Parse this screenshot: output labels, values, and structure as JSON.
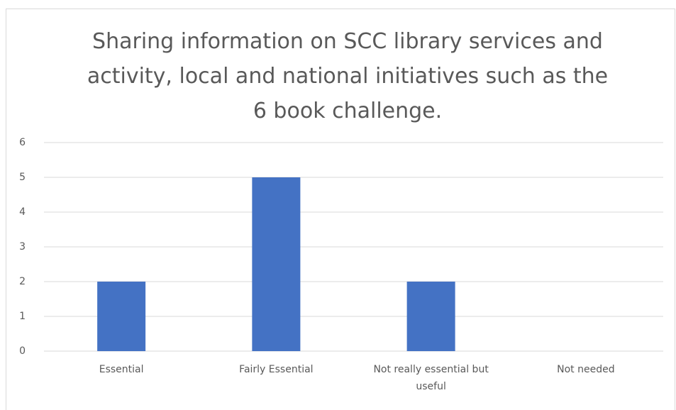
{
  "chart_data": {
    "type": "bar",
    "title": "Sharing information on SCC library services and activity, local and national initiatives such as the 6 book challenge.",
    "categories": [
      "Essential",
      "Fairly Essential",
      "Not really essential but useful",
      "Not needed"
    ],
    "values": [
      2,
      5,
      2,
      0
    ],
    "color": "#4472c4",
    "ylim": [
      0,
      6
    ],
    "yticks": [
      0,
      1,
      2,
      3,
      4,
      5,
      6
    ],
    "grid": true
  }
}
